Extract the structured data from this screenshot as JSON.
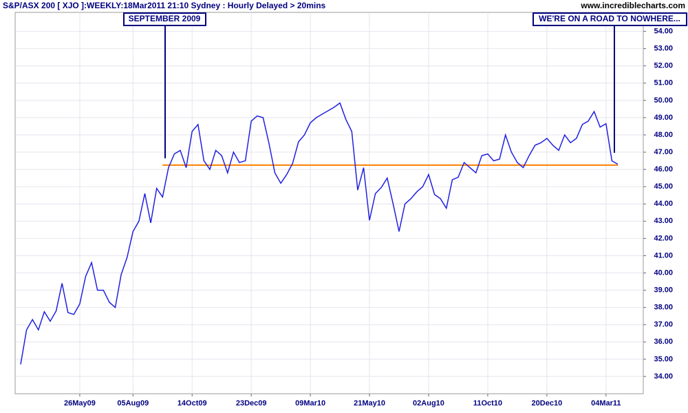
{
  "chart_data": {
    "type": "line",
    "title": "S&P/ASX 200 [ XJO ]:WEEKLY:18Mar2011 21:10 Sydney : Hourly Delayed > 20mins",
    "source": "www.incrediblecharts.com",
    "annotations": [
      "SEPTEMBER 2009",
      "WE'RE ON A ROAD TO NOWHERE..."
    ],
    "categories": [
      null,
      null,
      null,
      null,
      null,
      null,
      null,
      null,
      null,
      null,
      "26May09",
      null,
      null,
      null,
      null,
      null,
      null,
      null,
      null,
      "05Aug09",
      null,
      null,
      null,
      null,
      null,
      null,
      null,
      null,
      null,
      "14Oct09",
      null,
      null,
      null,
      null,
      null,
      null,
      null,
      null,
      null,
      "23Dec09",
      null,
      null,
      null,
      null,
      null,
      null,
      null,
      null,
      null,
      "09Mar10",
      null,
      null,
      null,
      null,
      null,
      null,
      null,
      null,
      null,
      "21May10",
      null,
      null,
      null,
      null,
      null,
      null,
      null,
      null,
      null,
      "02Aug10",
      null,
      null,
      null,
      null,
      null,
      null,
      null,
      null,
      null,
      "11Oct10",
      null,
      null,
      null,
      null,
      null,
      null,
      null,
      null,
      null,
      "20Dec10",
      null,
      null,
      null,
      null,
      null,
      null,
      null,
      null,
      null,
      "04Mar11",
      null,
      null
    ],
    "series": [
      {
        "name": "XJO",
        "color": "#2020e0",
        "values": [
          34.7,
          36.7,
          37.3,
          36.7,
          37.75,
          37.2,
          37.8,
          39.4,
          37.7,
          37.6,
          38.2,
          39.8,
          40.6,
          39.0,
          39.0,
          38.3,
          38.0,
          39.9,
          40.9,
          42.4,
          43.0,
          44.6,
          42.9,
          44.9,
          44.4,
          46.1,
          46.9,
          47.1,
          46.1,
          48.2,
          48.6,
          46.5,
          46.0,
          47.1,
          46.8,
          45.8,
          47.0,
          46.4,
          46.5,
          48.8,
          49.1,
          49.0,
          47.5,
          45.8,
          45.2,
          45.7,
          46.35,
          47.6,
          48.0,
          48.7,
          49.0,
          49.2,
          49.4,
          49.6,
          49.85,
          48.9,
          48.2,
          44.8,
          46.1,
          43.05,
          44.6,
          44.95,
          45.5,
          44.0,
          42.4,
          44.0,
          44.3,
          44.7,
          45.0,
          45.7,
          44.55,
          44.3,
          43.75,
          45.4,
          45.55,
          46.4,
          46.1,
          45.8,
          46.8,
          46.9,
          46.5,
          46.6,
          48.0,
          47.0,
          46.4,
          46.1,
          46.8,
          47.4,
          47.55,
          47.8,
          47.4,
          47.1,
          48.0,
          47.55,
          47.8,
          48.6,
          48.8,
          49.35,
          48.45,
          48.65,
          46.5,
          46.3
        ]
      }
    ],
    "reference_line": {
      "value": 46.25,
      "color": "#ff8000",
      "x_start_index": 24
    },
    "ylim": [
      33,
      55.1
    ],
    "yticks": [
      {
        "value": 34,
        "label": "34.00"
      },
      {
        "value": 35,
        "label": "35.00"
      },
      {
        "value": 36,
        "label": "36.00"
      },
      {
        "value": 37,
        "label": "37.00"
      },
      {
        "value": 38,
        "label": "38.00"
      },
      {
        "value": 39,
        "label": "39.00"
      },
      {
        "value": 40,
        "label": "40.00"
      },
      {
        "value": 41,
        "label": "41.00"
      },
      {
        "value": 42,
        "label": "42.00"
      },
      {
        "value": 43,
        "label": "43.00"
      },
      {
        "value": 44,
        "label": "44.00"
      },
      {
        "value": 45,
        "label": "45.00"
      },
      {
        "value": 46,
        "label": "46.00"
      },
      {
        "value": 47,
        "label": "47.00"
      },
      {
        "value": 48,
        "label": "48.00"
      },
      {
        "value": 49,
        "label": "49.00"
      },
      {
        "value": 50,
        "label": "50.00"
      },
      {
        "value": 51,
        "label": "51.00"
      },
      {
        "value": 52,
        "label": "52.00"
      },
      {
        "value": 53,
        "label": "53.00"
      },
      {
        "value": 54,
        "label": "54.00"
      }
    ],
    "grid": true
  }
}
